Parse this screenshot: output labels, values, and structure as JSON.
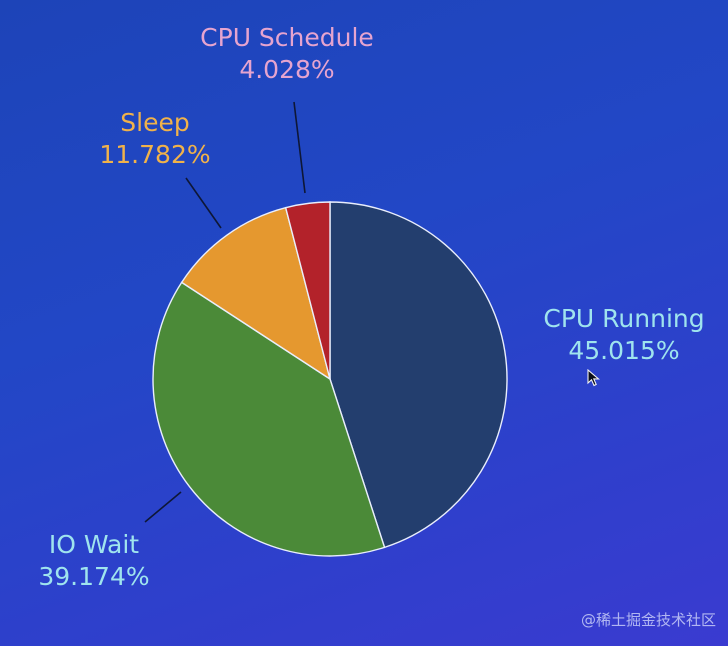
{
  "chart_data": {
    "type": "pie",
    "title": "",
    "slices": [
      {
        "label": "CPU Running",
        "value": 45.015,
        "value_label": "45.015%",
        "color": "#233e6e",
        "label_color": "#9fe4ee"
      },
      {
        "label": "IO Wait",
        "value": 39.174,
        "value_label": "39.174%",
        "color": "#4b8a38",
        "label_color": "#9fe4ee"
      },
      {
        "label": "Sleep",
        "value": 11.782,
        "value_label": "11.782%",
        "color": "#e5982f",
        "label_color": "#f0b24a"
      },
      {
        "label": "CPU Schedule",
        "value": 4.028,
        "value_label": "4.028%",
        "color": "#b3222a",
        "label_color": "#e6a4cf"
      }
    ],
    "start_angle": "12 o'clock",
    "direction": "clockwise"
  },
  "watermark": "@稀土掘金技术社区",
  "cursor_icon": "mouse-pointer-icon"
}
